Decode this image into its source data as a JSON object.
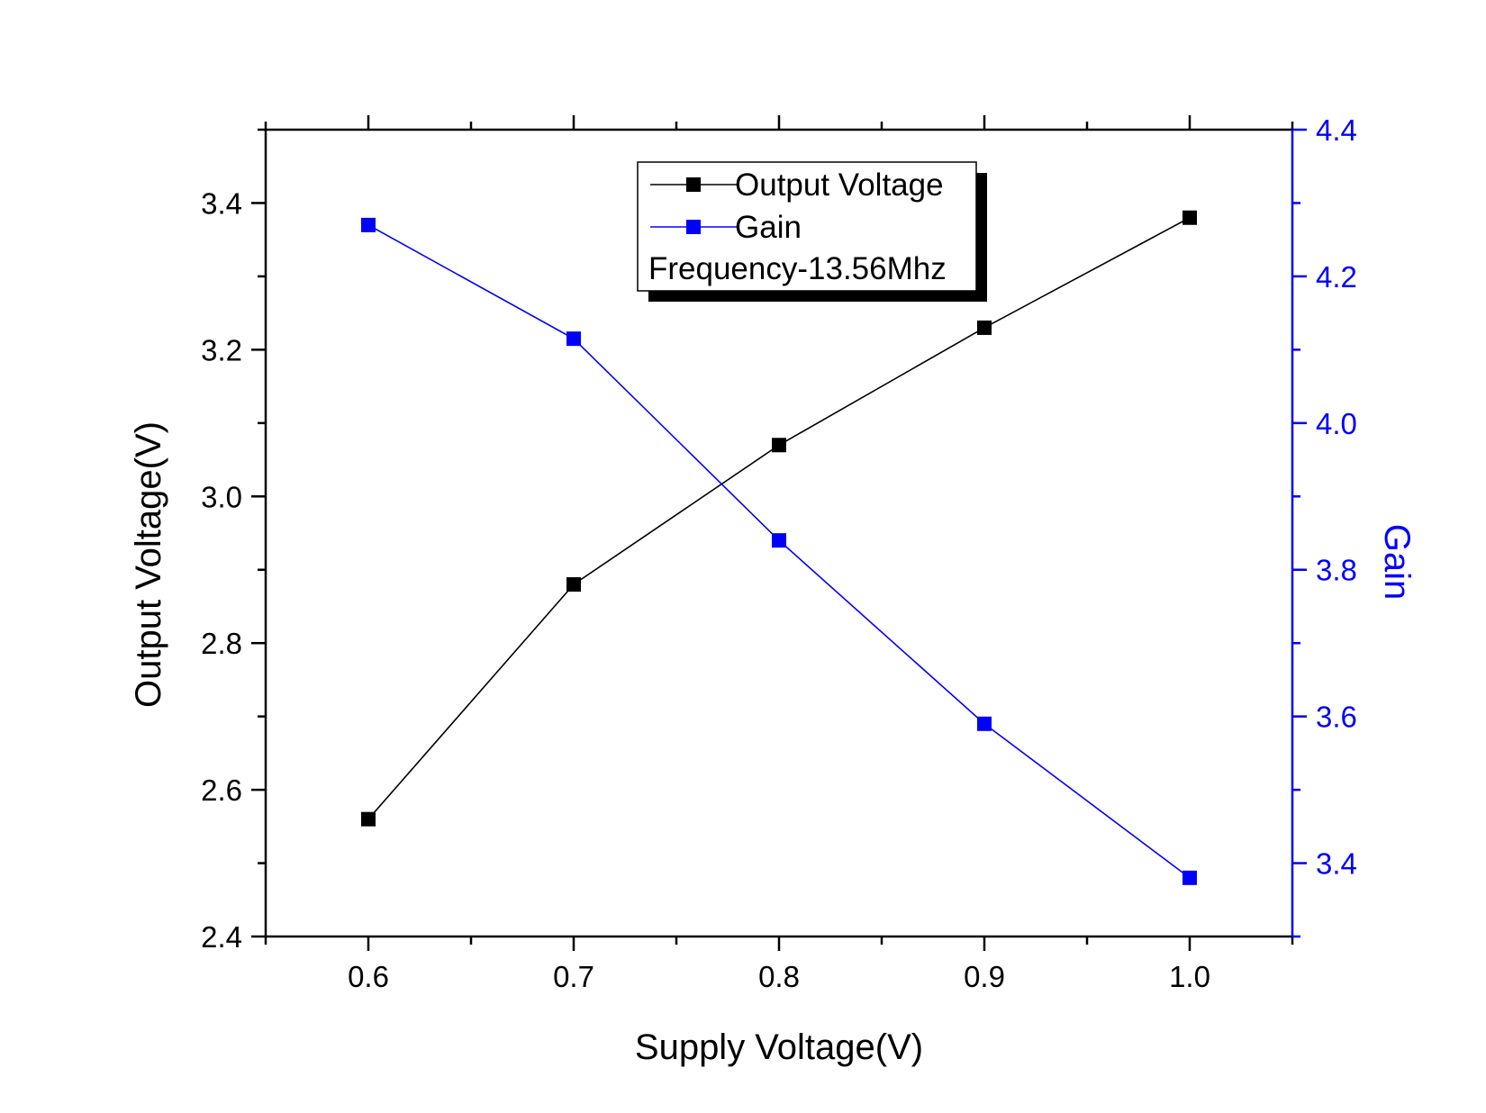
{
  "chart_data": {
    "type": "line",
    "title": "",
    "xlabel": "Supply Voltage(V)",
    "ylabel": "Output Voltage(V)",
    "y2label": "Gain",
    "x": [
      0.6,
      0.7,
      0.8,
      0.9,
      1.0
    ],
    "xlim": [
      0.55,
      1.05
    ],
    "ylim": [
      2.4,
      3.5
    ],
    "y2lim": [
      3.3,
      4.4
    ],
    "x_ticks": [
      "0.6",
      "0.7",
      "0.8",
      "0.9",
      "1.0"
    ],
    "y_ticks": [
      "2.4",
      "2.6",
      "2.8",
      "3.0",
      "3.2",
      "3.4"
    ],
    "y2_ticks": [
      "3.4",
      "3.6",
      "3.8",
      "4.0",
      "4.2",
      "4.4"
    ],
    "grid": false,
    "legend_position": "top-center",
    "series": [
      {
        "name": "Output Voltage",
        "axis": "left",
        "color": "#000000",
        "marker": "square",
        "values": [
          2.56,
          2.88,
          3.07,
          3.23,
          3.38
        ]
      },
      {
        "name": "Gain",
        "axis": "right",
        "color": "#0000ff",
        "marker": "square",
        "values": [
          4.27,
          4.115,
          3.84,
          3.59,
          3.38
        ]
      }
    ],
    "annotation": "Frequency-13.56Mhz"
  },
  "colors": {
    "left_axis": "#000000",
    "right_axis": "#0000ff"
  }
}
